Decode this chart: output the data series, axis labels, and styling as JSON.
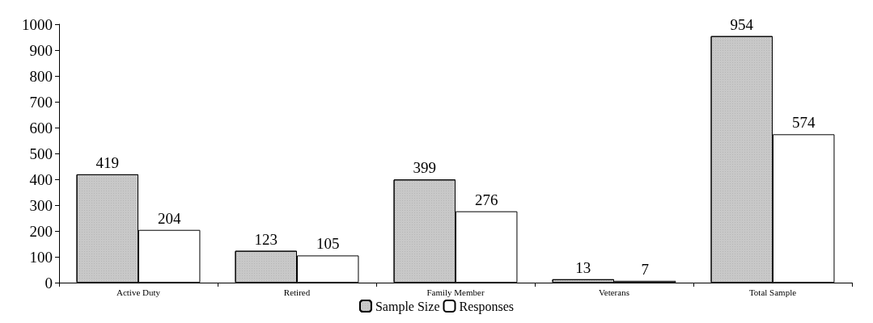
{
  "chart_data": {
    "type": "bar",
    "categories": [
      "Active Duty",
      "Retired",
      "Family Member",
      "Veterans",
      "Total Sample"
    ],
    "series": [
      {
        "name": "Sample Size",
        "color": "#c8c8c8",
        "values": [
          419,
          123,
          399,
          13,
          954
        ]
      },
      {
        "name": "Responses",
        "color": "#ffffff",
        "values": [
          204,
          105,
          276,
          7,
          574
        ]
      }
    ],
    "ylim": [
      0,
      1000
    ],
    "yticks": [
      0,
      100,
      200,
      300,
      400,
      500,
      600,
      700,
      800,
      900,
      1000
    ],
    "data_labels": true,
    "grid": false,
    "legend": "bottom"
  }
}
